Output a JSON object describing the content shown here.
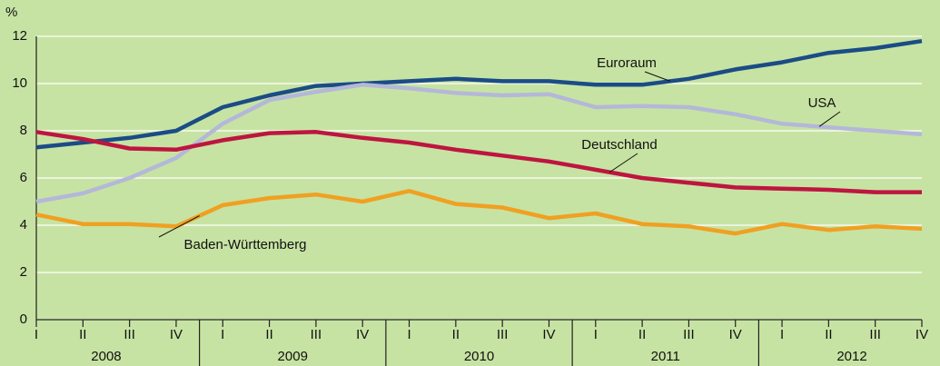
{
  "chart_data": {
    "type": "line",
    "y_unit": "%",
    "categories": [
      "I",
      "II",
      "III",
      "IV",
      "I",
      "II",
      "III",
      "IV",
      "I",
      "II",
      "III",
      "IV",
      "I",
      "II",
      "III",
      "IV",
      "I",
      "II",
      "III",
      "IV"
    ],
    "years": [
      "2008",
      "2009",
      "2010",
      "2011",
      "2012"
    ],
    "series": [
      {
        "name": "Euroraum",
        "color": "#1b4c86",
        "values": [
          7.3,
          7.5,
          7.7,
          8.0,
          9.0,
          9.5,
          9.9,
          10.0,
          10.1,
          10.2,
          10.1,
          10.1,
          9.95,
          9.95,
          10.2,
          10.6,
          10.9,
          11.3,
          11.5,
          11.8
        ]
      },
      {
        "name": "USA",
        "color": "#b4b8d8",
        "values": [
          5.0,
          5.35,
          6.0,
          6.85,
          8.3,
          9.3,
          9.65,
          9.95,
          9.8,
          9.6,
          9.5,
          9.55,
          9.0,
          9.05,
          9.0,
          8.7,
          8.3,
          8.15,
          8.0,
          7.85
        ]
      },
      {
        "name": "Deutschland",
        "color": "#be1540",
        "values": [
          7.95,
          7.65,
          7.25,
          7.2,
          7.6,
          7.9,
          7.95,
          7.7,
          7.5,
          7.2,
          6.95,
          6.7,
          6.35,
          6.0,
          5.8,
          5.6,
          5.55,
          5.5,
          5.4,
          5.4
        ]
      },
      {
        "name": "Baden-Württemberg",
        "color": "#f0a022",
        "values": [
          4.45,
          4.05,
          4.05,
          3.95,
          4.85,
          5.15,
          5.3,
          5.0,
          5.45,
          4.9,
          4.75,
          4.3,
          4.5,
          4.05,
          3.95,
          3.65,
          4.05,
          3.8,
          3.95,
          3.85
        ]
      }
    ],
    "ylim": [
      0,
      12
    ],
    "yticks": [
      0,
      2,
      4,
      6,
      8,
      10,
      12
    ],
    "grid": true
  }
}
